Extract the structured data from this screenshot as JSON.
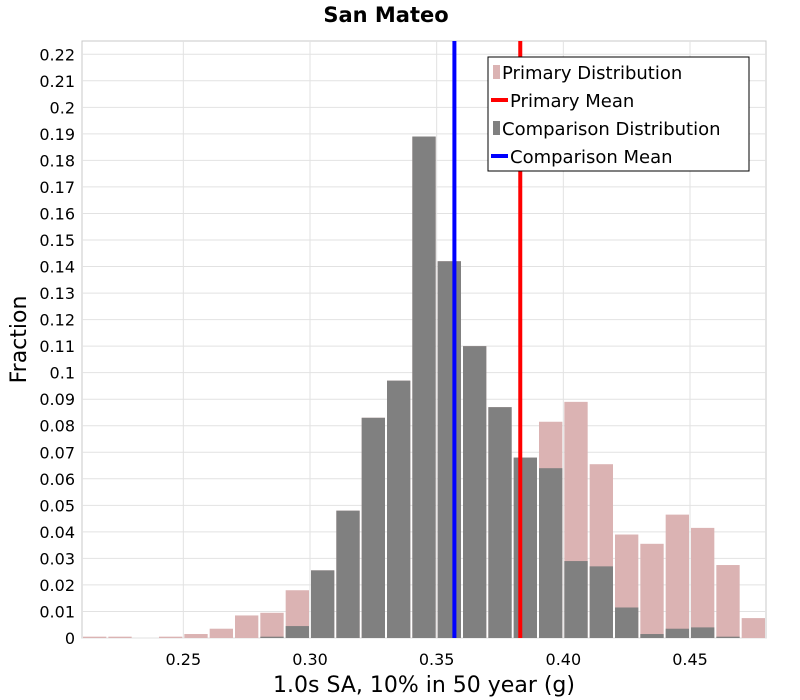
{
  "chart_data": {
    "type": "bar",
    "title": "San Mateo",
    "xlabel": "1.0s SA, 10% in 50 year (g)",
    "ylabel": "Fraction",
    "xlim": [
      0.21,
      0.48
    ],
    "ylim": [
      0,
      0.225
    ],
    "bin_width": 0.01,
    "grid": true,
    "legend_position": "top-right",
    "x_ticks": [
      {
        "value": 0.25,
        "label": "0.25"
      },
      {
        "value": 0.3,
        "label": "0.30"
      },
      {
        "value": 0.35,
        "label": "0.35"
      },
      {
        "value": 0.4,
        "label": "0.40"
      },
      {
        "value": 0.45,
        "label": "0.45"
      }
    ],
    "y_ticks": [
      {
        "value": 0,
        "label": "0"
      },
      {
        "value": 0.01,
        "label": "0.01"
      },
      {
        "value": 0.02,
        "label": "0.02"
      },
      {
        "value": 0.03,
        "label": "0.03"
      },
      {
        "value": 0.04,
        "label": "0.04"
      },
      {
        "value": 0.05,
        "label": "0.05"
      },
      {
        "value": 0.06,
        "label": "0.06"
      },
      {
        "value": 0.07,
        "label": "0.07"
      },
      {
        "value": 0.08,
        "label": "0.08"
      },
      {
        "value": 0.09,
        "label": "0.09"
      },
      {
        "value": 0.1,
        "label": "0.1"
      },
      {
        "value": 0.11,
        "label": "0.11"
      },
      {
        "value": 0.12,
        "label": "0.12"
      },
      {
        "value": 0.13,
        "label": "0.13"
      },
      {
        "value": 0.14,
        "label": "0.14"
      },
      {
        "value": 0.15,
        "label": "0.15"
      },
      {
        "value": 0.16,
        "label": "0.16"
      },
      {
        "value": 0.17,
        "label": "0.17"
      },
      {
        "value": 0.18,
        "label": "0.18"
      },
      {
        "value": 0.19,
        "label": "0.19"
      },
      {
        "value": 0.2,
        "label": "0.2"
      },
      {
        "value": 0.21,
        "label": "0.21"
      },
      {
        "value": 0.22,
        "label": "0.22"
      }
    ],
    "x": [
      0.215,
      0.225,
      0.235,
      0.245,
      0.255,
      0.265,
      0.275,
      0.285,
      0.295,
      0.305,
      0.315,
      0.325,
      0.335,
      0.345,
      0.355,
      0.365,
      0.375,
      0.385,
      0.395,
      0.405,
      0.415,
      0.425,
      0.435,
      0.445,
      0.455,
      0.465,
      0.475
    ],
    "series": [
      {
        "name": "Primary Distribution",
        "color": "#dbb3b3",
        "values": [
          0.0005,
          0.0005,
          0,
          0.0005,
          0.0015,
          0.0035,
          0.0085,
          0.0095,
          0.018,
          0.0255,
          0.048,
          0.083,
          0.097,
          0.189,
          0.142,
          0.11,
          0.087,
          0.068,
          0.0815,
          0.089,
          0.0655,
          0.039,
          0.0355,
          0.0465,
          0.0415,
          0.0275,
          0.0075
        ]
      },
      {
        "name": "Comparison Distribution",
        "color": "#808080",
        "values": [
          0,
          0,
          0,
          0,
          0,
          0,
          0,
          0.0005,
          0.0045,
          0.0255,
          0.048,
          0.083,
          0.097,
          0.189,
          0.142,
          0.11,
          0.087,
          0.068,
          0.064,
          0.029,
          0.027,
          0.0115,
          0.0015,
          0.0035,
          0.004,
          0.0005,
          0
        ]
      }
    ],
    "means": [
      {
        "name": "Primary Mean",
        "value": 0.383,
        "color": "#ff0000"
      },
      {
        "name": "Comparison Mean",
        "value": 0.357,
        "color": "#0000ff"
      }
    ],
    "legend": [
      {
        "label": "Primary Distribution",
        "kind": "bar",
        "color": "#dbb3b3"
      },
      {
        "label": "Primary Mean",
        "kind": "line",
        "color": "#ff0000"
      },
      {
        "label": "Comparison Distribution",
        "kind": "bar",
        "color": "#808080"
      },
      {
        "label": "Comparison Mean",
        "kind": "line",
        "color": "#0000ff"
      }
    ]
  }
}
